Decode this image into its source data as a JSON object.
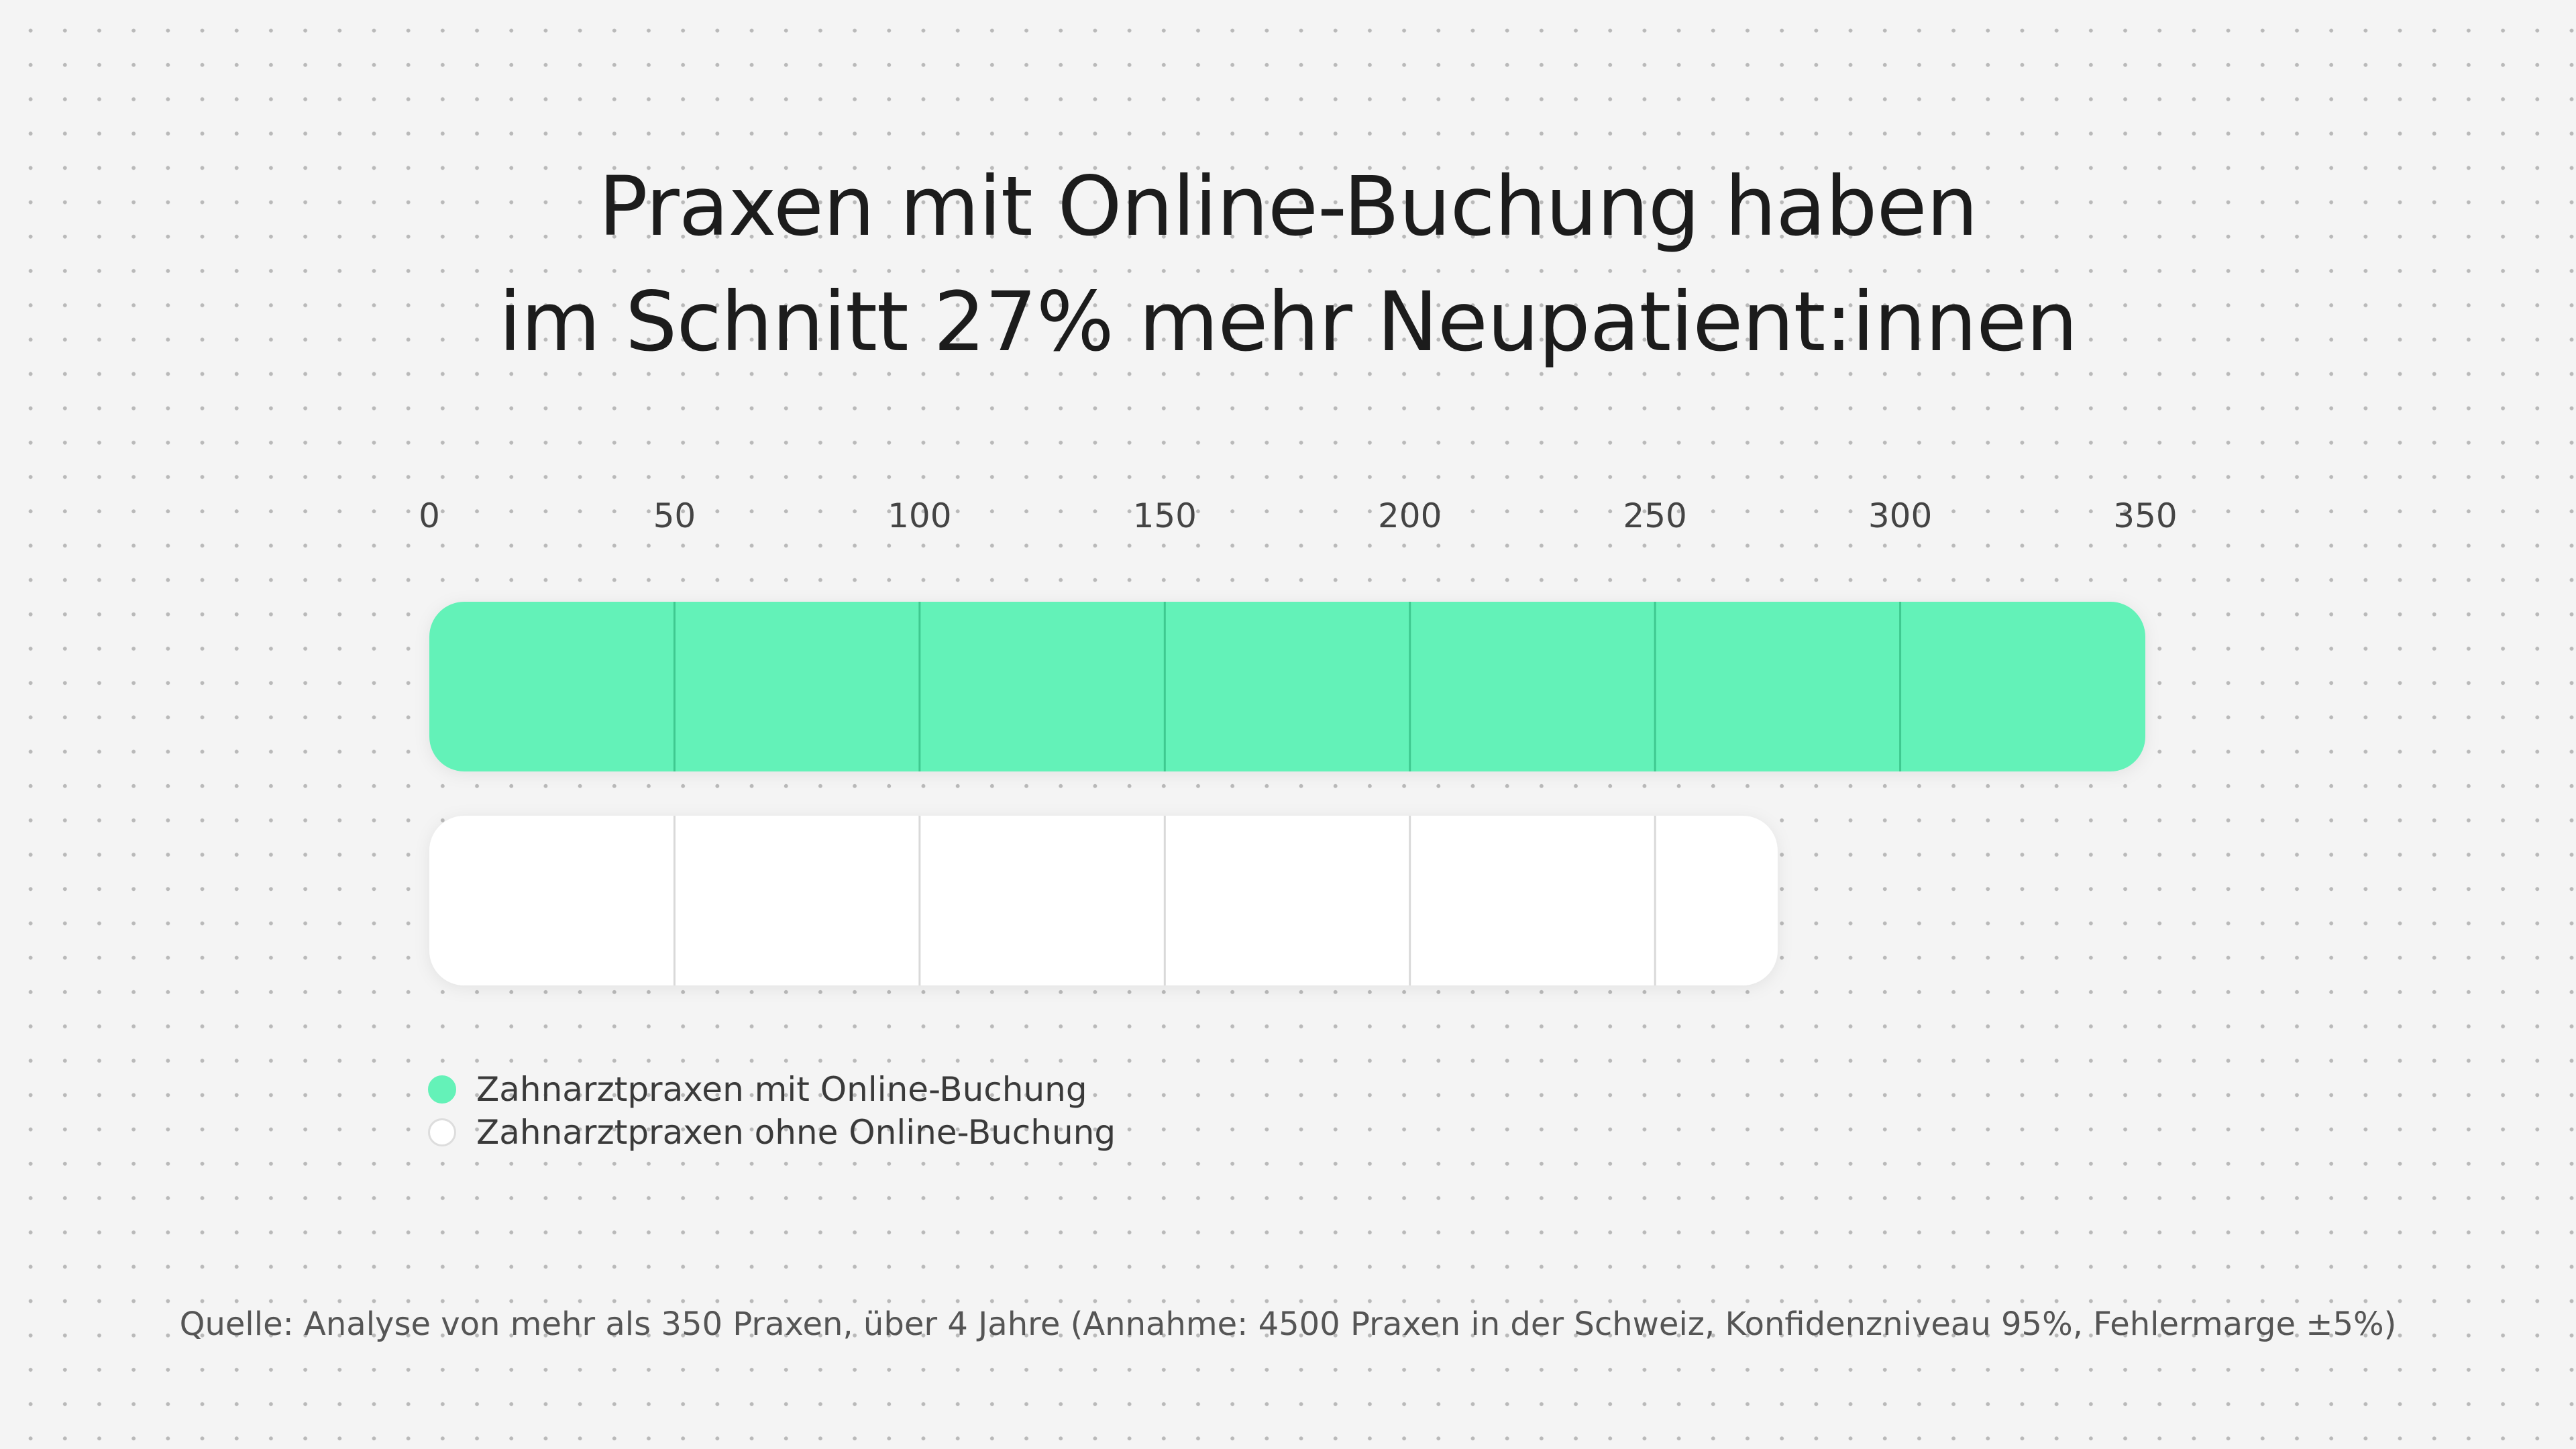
{
  "title": {
    "line1": "Praxen mit Online-Buchung haben",
    "line2": "im Schnitt 27% mehr Neupatient:innen"
  },
  "chart_data": {
    "type": "bar",
    "orientation": "horizontal",
    "xlim": [
      0,
      350
    ],
    "tick_step": 50,
    "xticks": [
      "0",
      "50",
      "100",
      "150",
      "200",
      "250",
      "300",
      "350"
    ],
    "axis_position": "top",
    "series": [
      {
        "name": "Zahnarztpraxen mit Online-Buchung",
        "value": 350,
        "color": "#64f2b8",
        "divider_color": "#3fc990"
      },
      {
        "name": "Zahnarztpraxen ohne Online-Buchung",
        "value": 275,
        "color": "#ffffff",
        "divider_color": "#d9d9d9"
      }
    ],
    "legend_position": "bottom-left"
  },
  "legend": {
    "items": [
      {
        "label": "Zahnarztpraxen mit Online-Buchung",
        "color": "#64f2b8"
      },
      {
        "label": "Zahnarztpraxen ohne Online-Buchung",
        "color": "#ffffff"
      }
    ]
  },
  "source": "Quelle: Analyse von mehr als 350 Praxen, über 4 Jahre (Annahme: 4500 Praxen in der Schweiz, Konfidenzniveau 95%, Fehlermarge ±5%)"
}
